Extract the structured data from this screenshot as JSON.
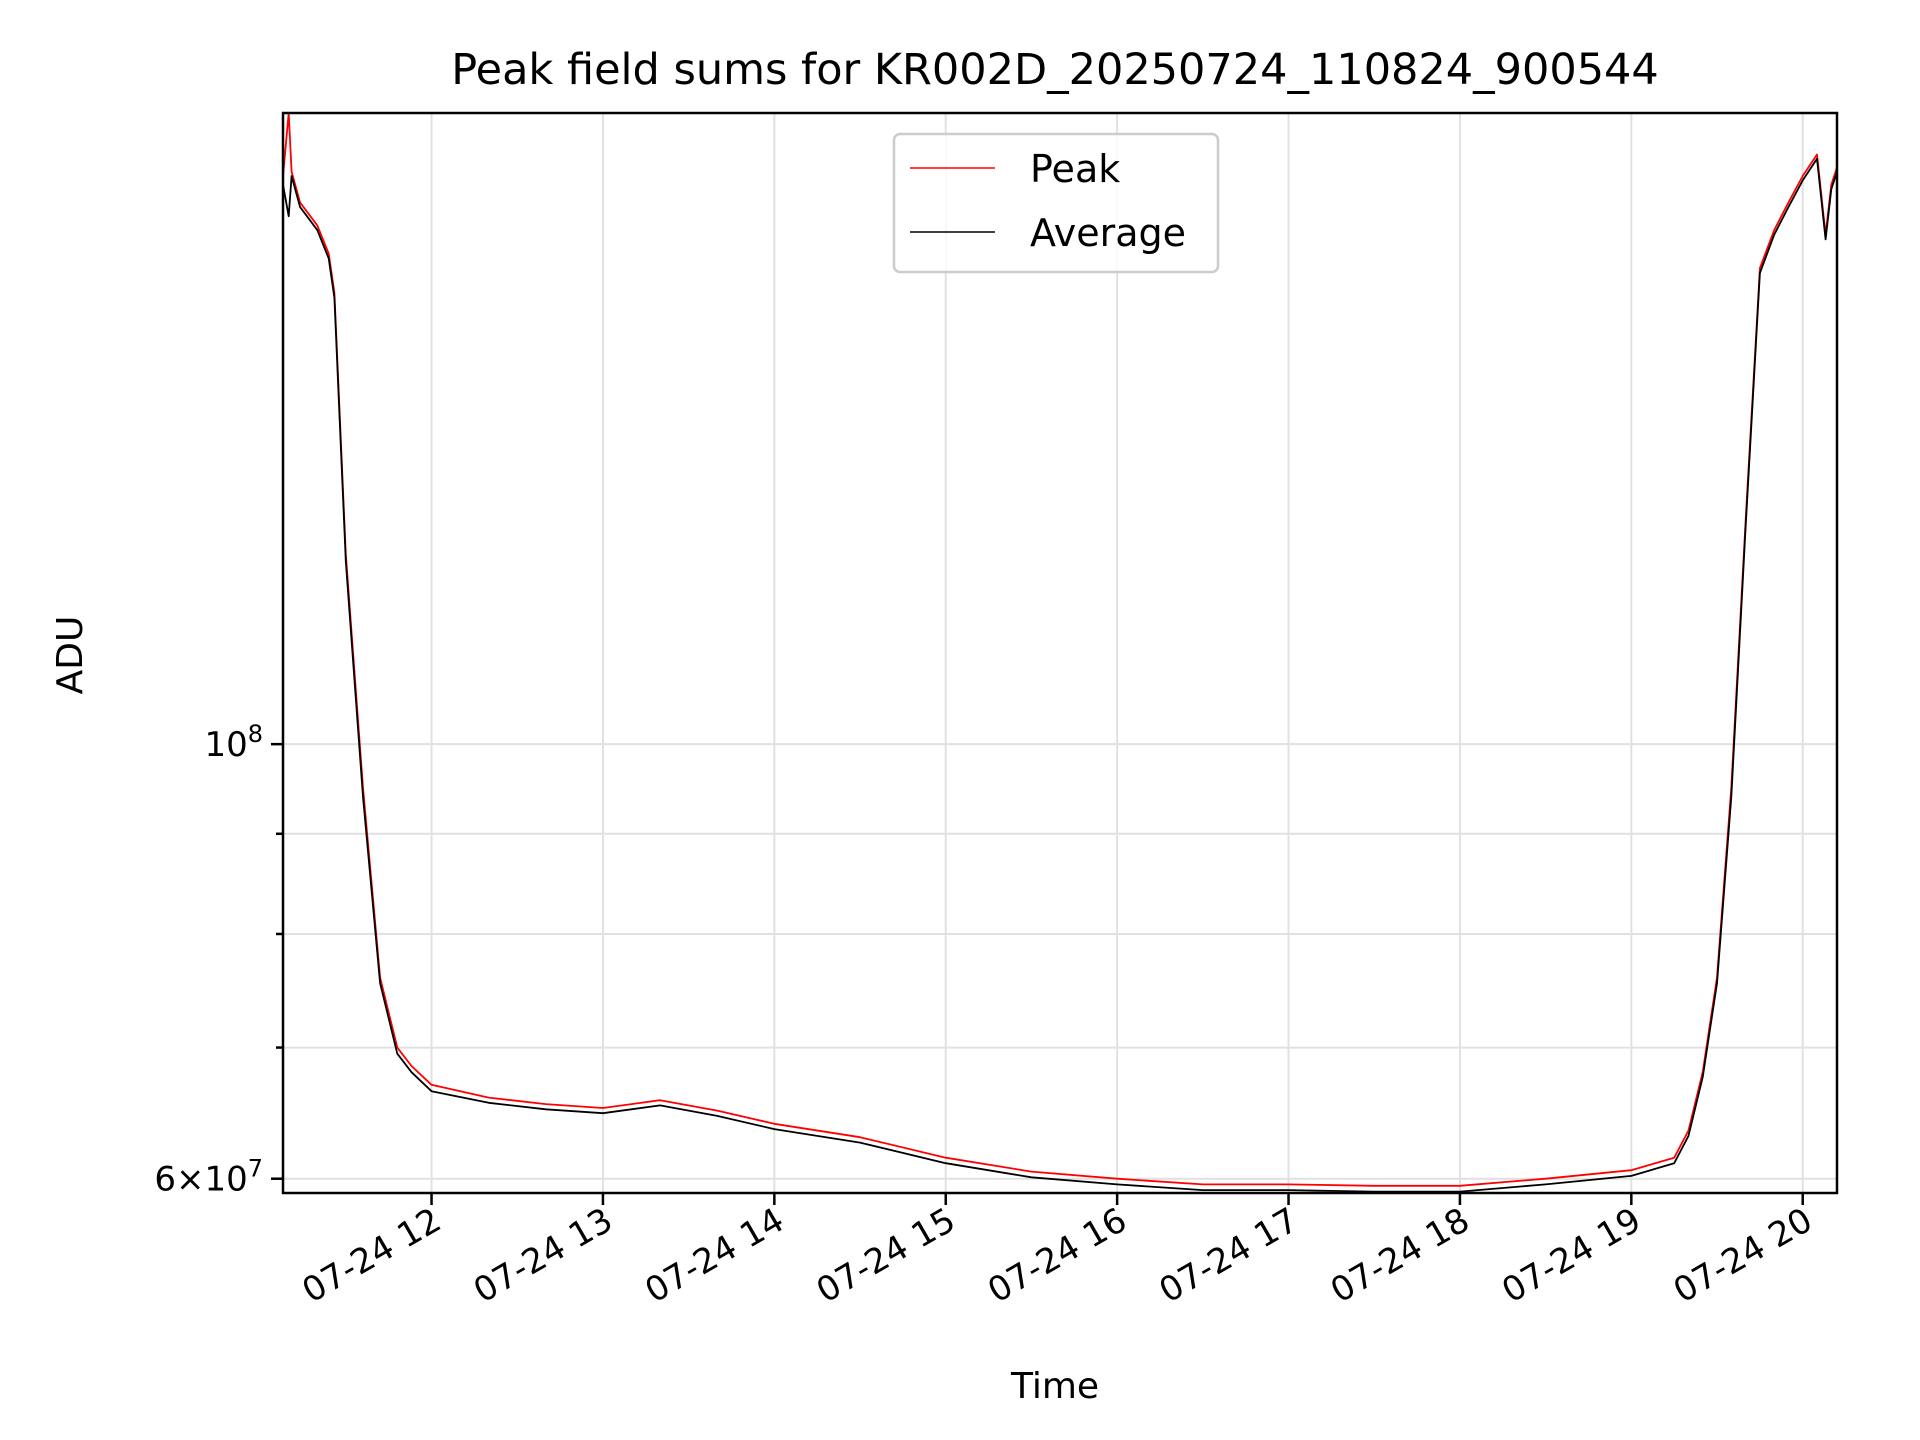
{
  "chart_data": {
    "type": "line",
    "title": "Peak field sums for KR002D_20250724_110824_900544",
    "xlabel": "Time",
    "ylabel": "ADU",
    "yscale": "log",
    "grid": true,
    "legend_position": "top-center",
    "xlim": [
      "2025-07-24 11:08",
      "2025-07-24 20:12"
    ],
    "ylim": [
      59000000,
      210000000
    ],
    "x_ticks": [
      "07-24 12",
      "07-24 13",
      "07-24 14",
      "07-24 15",
      "07-24 16",
      "07-24 17",
      "07-24 18",
      "07-24 19",
      "07-24 20"
    ],
    "y_ticks": [
      {
        "value": 100000000,
        "base": "10",
        "exp": "8"
      },
      {
        "value": 60000000,
        "base": "6×10",
        "exp": "7"
      }
    ],
    "y_minor_ticks": [
      70000000,
      80000000,
      90000000
    ],
    "series": [
      {
        "name": "Peak",
        "color": "#ff0000",
        "x": [
          "2025-07-24 11:08",
          "2025-07-24 11:10",
          "2025-07-24 11:11",
          "2025-07-24 11:14",
          "2025-07-24 11:20",
          "2025-07-24 11:24",
          "2025-07-24 11:26",
          "2025-07-24 11:30",
          "2025-07-24 11:36",
          "2025-07-24 11:42",
          "2025-07-24 11:48",
          "2025-07-24 11:53",
          "2025-07-24 12:00",
          "2025-07-24 12:20",
          "2025-07-24 12:40",
          "2025-07-24 13:00",
          "2025-07-24 13:20",
          "2025-07-24 13:40",
          "2025-07-24 14:00",
          "2025-07-24 14:30",
          "2025-07-24 15:00",
          "2025-07-24 15:30",
          "2025-07-24 16:00",
          "2025-07-24 16:30",
          "2025-07-24 17:00",
          "2025-07-24 17:30",
          "2025-07-24 18:00",
          "2025-07-24 18:30",
          "2025-07-24 19:00",
          "2025-07-24 19:15",
          "2025-07-24 19:20",
          "2025-07-24 19:25",
          "2025-07-24 19:30",
          "2025-07-24 19:35",
          "2025-07-24 19:40",
          "2025-07-24 19:45",
          "2025-07-24 19:50",
          "2025-07-24 19:55",
          "2025-07-24 20:00",
          "2025-07-24 20:05",
          "2025-07-24 20:08",
          "2025-07-24 20:10",
          "2025-07-24 20:12"
        ],
        "y": [
          195000000,
          210000000,
          196000000,
          189000000,
          184000000,
          178000000,
          170000000,
          125000000,
          95000000,
          76000000,
          70000000,
          68500000,
          67000000,
          66000000,
          65500000,
          65200000,
          65800000,
          65000000,
          64000000,
          63000000,
          61500000,
          60500000,
          60000000,
          59600000,
          59600000,
          59500000,
          59500000,
          60000000,
          60600000,
          61500000,
          63500000,
          68000000,
          76000000,
          95000000,
          130000000,
          175000000,
          183000000,
          189000000,
          195000000,
          200000000,
          182000000,
          193000000,
          197000000
        ]
      },
      {
        "name": "Average",
        "color": "#000000",
        "x": [
          "2025-07-24 11:08",
          "2025-07-24 11:10",
          "2025-07-24 11:11",
          "2025-07-24 11:14",
          "2025-07-24 11:20",
          "2025-07-24 11:24",
          "2025-07-24 11:26",
          "2025-07-24 11:30",
          "2025-07-24 11:36",
          "2025-07-24 11:42",
          "2025-07-24 11:48",
          "2025-07-24 11:53",
          "2025-07-24 12:00",
          "2025-07-24 12:20",
          "2025-07-24 12:40",
          "2025-07-24 13:00",
          "2025-07-24 13:20",
          "2025-07-24 13:40",
          "2025-07-24 14:00",
          "2025-07-24 14:30",
          "2025-07-24 15:00",
          "2025-07-24 15:30",
          "2025-07-24 16:00",
          "2025-07-24 16:30",
          "2025-07-24 17:00",
          "2025-07-24 17:30",
          "2025-07-24 18:00",
          "2025-07-24 18:30",
          "2025-07-24 19:00",
          "2025-07-24 19:15",
          "2025-07-24 19:20",
          "2025-07-24 19:25",
          "2025-07-24 19:30",
          "2025-07-24 19:35",
          "2025-07-24 19:40",
          "2025-07-24 19:45",
          "2025-07-24 19:50",
          "2025-07-24 19:55",
          "2025-07-24 20:00",
          "2025-07-24 20:05",
          "2025-07-24 20:08",
          "2025-07-24 20:10",
          "2025-07-24 20:12"
        ],
        "y": [
          193000000,
          186000000,
          195000000,
          188000000,
          183000000,
          177000000,
          169000000,
          124000000,
          94000000,
          75500000,
          69500000,
          68000000,
          66500000,
          65600000,
          65100000,
          64800000,
          65400000,
          64600000,
          63600000,
          62600000,
          61100000,
          60100000,
          59600000,
          59200000,
          59200000,
          59100000,
          59100000,
          59600000,
          60200000,
          61100000,
          63100000,
          67600000,
          75500000,
          94000000,
          129000000,
          174000000,
          182000000,
          188000000,
          194000000,
          199000000,
          181000000,
          192000000,
          196000000
        ]
      }
    ]
  }
}
